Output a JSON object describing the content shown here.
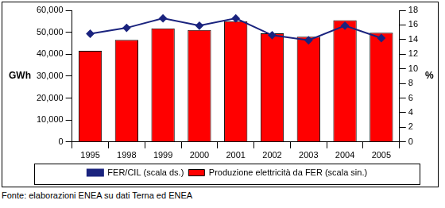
{
  "chart_data": {
    "type": "bar",
    "categories": [
      "1995",
      "1998",
      "1999",
      "2000",
      "2001",
      "2002",
      "2003",
      "2004",
      "2005"
    ],
    "series": [
      {
        "name": "Produzione elettricità da FER (scala sin.)",
        "type": "bar",
        "color": "#ff0000",
        "values": [
          41500,
          46500,
          51800,
          51000,
          55000,
          49500,
          48000,
          55500,
          49800
        ]
      },
      {
        "name": "FER/CIL (scala ds.)",
        "type": "line",
        "color": "#1a237e",
        "marker": "diamond",
        "axis": "y2",
        "values": [
          14.8,
          15.6,
          16.9,
          15.9,
          16.9,
          14.6,
          13.9,
          15.9,
          14.2
        ]
      }
    ],
    "ylabel": "GWh",
    "y2label": "%",
    "ylim": [
      0,
      60000
    ],
    "yticks": [
      0,
      {
        "value": 10000,
        "label": "10,000"
      },
      {
        "value": 20000,
        "label": "20,000"
      },
      {
        "value": 30000,
        "label": "30,000"
      },
      {
        "value": 40000,
        "label": "40,000"
      },
      {
        "value": 50000,
        "label": "50,000"
      },
      {
        "value": 60000,
        "label": "60,000"
      }
    ],
    "y2lim": [
      0,
      18
    ],
    "y2ticks": [
      0,
      2,
      4,
      6,
      8,
      10,
      12,
      14,
      16,
      18
    ],
    "grid": false,
    "legend": "bottom",
    "note": "Fonte: elaborazioni ENEA su dati Terna ed ENEA"
  }
}
